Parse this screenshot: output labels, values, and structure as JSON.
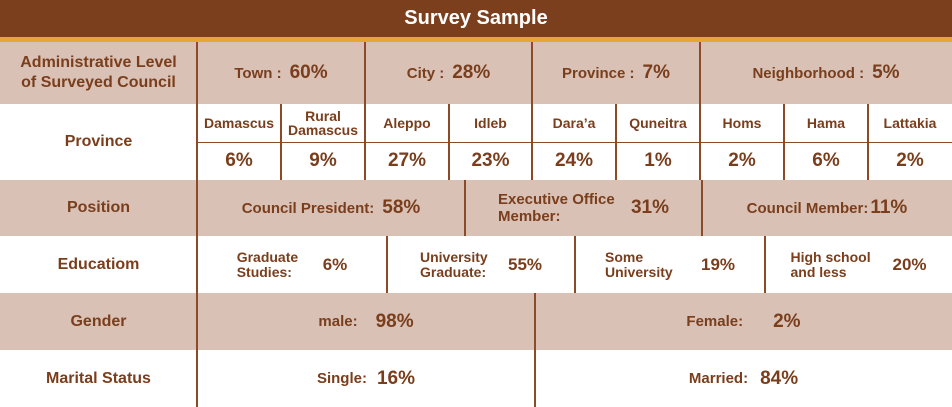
{
  "title": "Survey Sample",
  "rows": {
    "admin": {
      "label": "Administrative Level of Surveyed Council",
      "items": [
        {
          "name": "Town :",
          "pct": "60%"
        },
        {
          "name": "City :",
          "pct": "28%"
        },
        {
          "name": "Province :",
          "pct": "7%"
        },
        {
          "name": "Neighborhood :",
          "pct": "5%"
        }
      ]
    },
    "province": {
      "label": "Province",
      "items": [
        {
          "name": "Damascus",
          "pct": "6%"
        },
        {
          "name": "Rural Damascus",
          "pct": "9%"
        },
        {
          "name": "Aleppo",
          "pct": "27%"
        },
        {
          "name": "Idleb",
          "pct": "23%"
        },
        {
          "name": "Dara’a",
          "pct": "24%"
        },
        {
          "name": "Quneitra",
          "pct": "1%"
        },
        {
          "name": "Homs",
          "pct": "2%"
        },
        {
          "name": "Hama",
          "pct": "6%"
        },
        {
          "name": "Lattakia",
          "pct": "2%"
        }
      ]
    },
    "position": {
      "label": "Position",
      "items": [
        {
          "name": "Council President:",
          "pct": "58%"
        },
        {
          "name": "Executive Office Member:",
          "pct": "31%"
        },
        {
          "name": "Council Member:",
          "pct": "11%"
        }
      ]
    },
    "education": {
      "label": "Educatiom",
      "items": [
        {
          "name": "Graduate Studies:",
          "pct": "6%"
        },
        {
          "name": "University Graduate:",
          "pct": "55%"
        },
        {
          "name": "Some University",
          "pct": "19%"
        },
        {
          "name": "High school and less",
          "pct": "20%"
        }
      ]
    },
    "gender": {
      "label": "Gender",
      "items": [
        {
          "name": "male:",
          "pct": "98%"
        },
        {
          "name": "Female:",
          "pct": "2%"
        }
      ]
    },
    "marital": {
      "label": "Marital Status",
      "items": [
        {
          "name": "Single:",
          "pct": "16%"
        },
        {
          "name": "Married:",
          "pct": "84%"
        }
      ]
    }
  }
}
